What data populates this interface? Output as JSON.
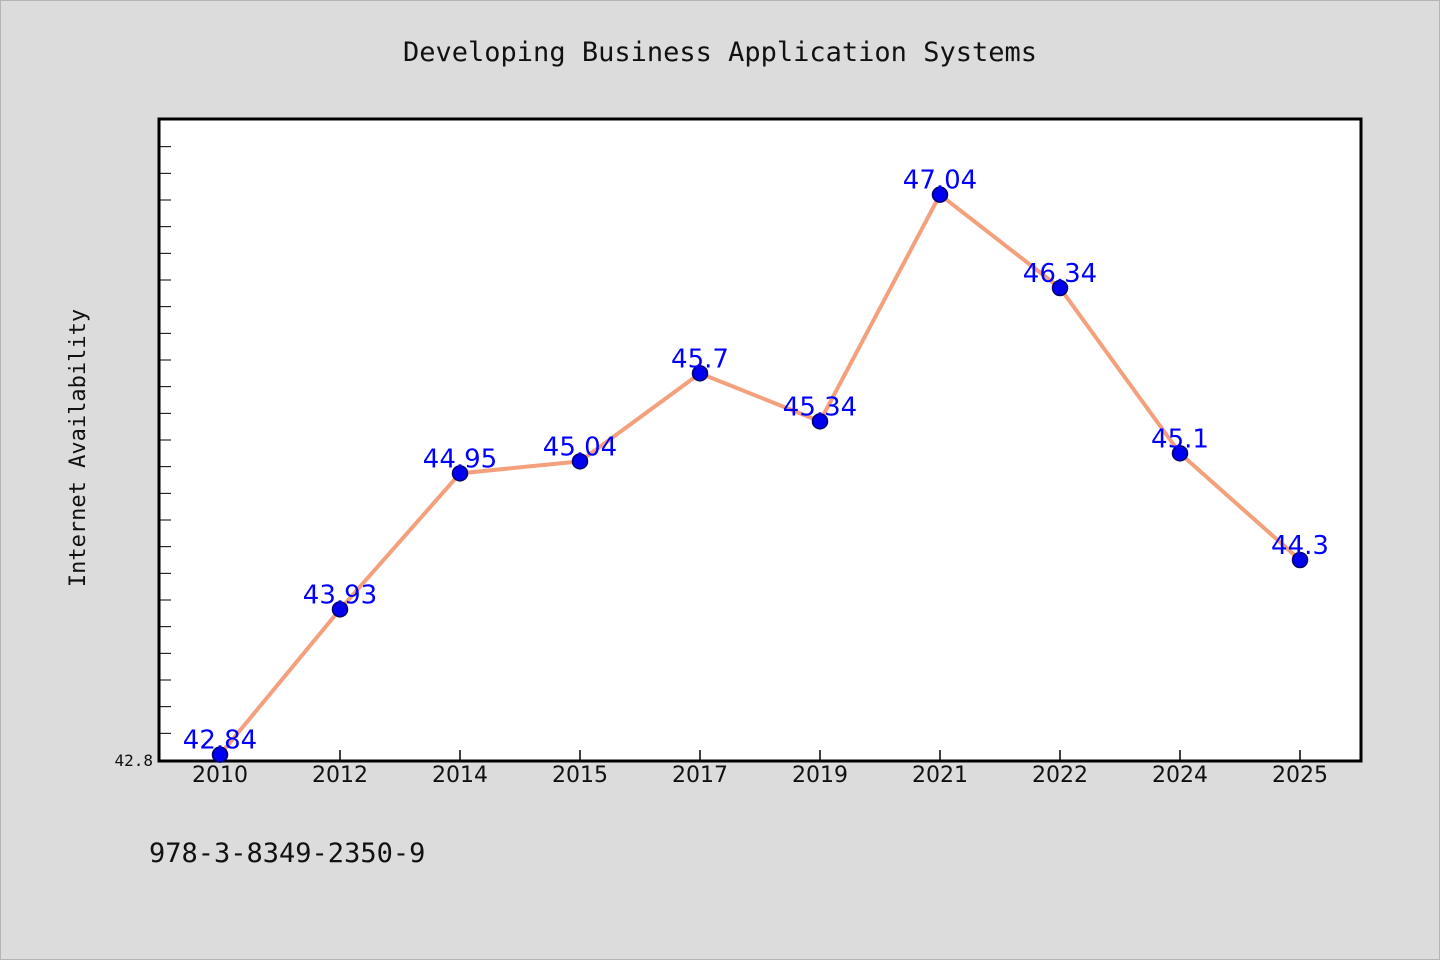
{
  "chart_data": {
    "type": "line",
    "title": "Developing Business Application Systems",
    "xlabel": "",
    "ylabel": "Internet Availability",
    "categories": [
      "2010",
      "2012",
      "2014",
      "2015",
      "2017",
      "2019",
      "2021",
      "2022",
      "2024",
      "2025"
    ],
    "series": [
      {
        "values": [
          42.84,
          43.93,
          44.95,
          45.04,
          45.7,
          45.34,
          47.04,
          46.34,
          45.1,
          44.3
        ],
        "data_labels": [
          "42.84",
          "43.93",
          "44.95",
          "45.04",
          "45.7",
          "45.34",
          "47.04",
          "46.34",
          "45.1",
          "44.3"
        ]
      }
    ],
    "ylim": [
      42.8,
      47.6
    ],
    "y_tick_labels": [
      "42.8"
    ],
    "grid": false,
    "legend": "none",
    "colors": {
      "line": "#f4a07c",
      "marker": "#0000ee",
      "marker_edge": "#000066",
      "data_label": "#0000ff",
      "plot_background": "#ffffff",
      "figure_background": "#dcdcdc"
    }
  },
  "footer": {
    "isbn": "978-3-8349-2350-9"
  }
}
